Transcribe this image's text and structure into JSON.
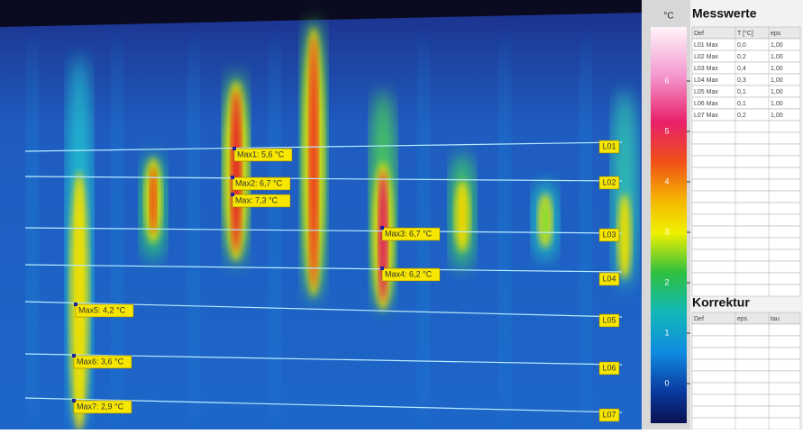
{
  "image": {
    "max_labels": [
      "Max1: 5,6 °C",
      "Max2: 6,7 °C",
      "Max: 7,3 °C",
      "Max3: 6,7 °C",
      "Max4: 6,2 °C",
      "Max5: 4,2 °C",
      "Max6: 3,6 °C",
      "Max7: 2,9 °C"
    ],
    "line_labels": [
      "L01",
      "L02",
      "L03",
      "L04",
      "L05",
      "L06",
      "L07"
    ]
  },
  "scale": {
    "unit": "°C",
    "ticks": [
      "6",
      "5",
      "4",
      "3",
      "2",
      "1",
      "0"
    ]
  },
  "messwerte": {
    "title": "Messwerte",
    "header": [
      "Def",
      "T [°C]",
      "eps"
    ],
    "rows": [
      [
        "L01 Max",
        "0,0",
        "1,00"
      ],
      [
        "L02 Max",
        "0,2",
        "1,00"
      ],
      [
        "L03 Max",
        "0,4",
        "1,00"
      ],
      [
        "L04 Max",
        "0,3",
        "1,00"
      ],
      [
        "L05 Max",
        "0,1",
        "1,00"
      ],
      [
        "L06 Max",
        "0,1",
        "1,00"
      ],
      [
        "L07 Max",
        "0,2",
        "1,00"
      ]
    ]
  },
  "korrektur": {
    "title": "Korrektur",
    "header": [
      "Def",
      "eps",
      "tau"
    ]
  }
}
